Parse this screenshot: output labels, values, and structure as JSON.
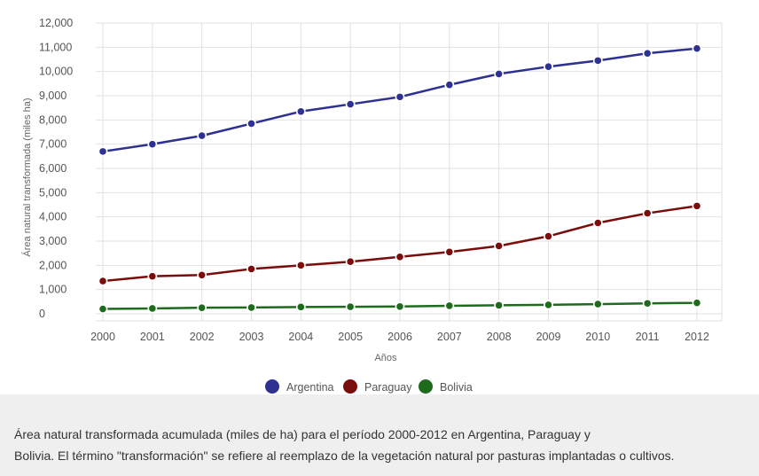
{
  "chart_data": {
    "type": "line",
    "title": "",
    "xlabel": "Años",
    "ylabel": "Área natural transformada (miles ha)",
    "ylim": [
      0,
      12000
    ],
    "yticks": [
      "0",
      "1,000",
      "2,000",
      "3,000",
      "4,000",
      "5,000",
      "6,000",
      "7,000",
      "8,000",
      "9,000",
      "10,000",
      "11,000",
      "12,000"
    ],
    "x": [
      "2000",
      "2001",
      "2002",
      "2003",
      "2004",
      "2005",
      "2006",
      "2007",
      "2008",
      "2009",
      "2010",
      "2011",
      "2012"
    ],
    "grid": true,
    "legend_position": "bottom",
    "series": [
      {
        "name": "Argentina",
        "color": "#2e3192",
        "values": [
          6700,
          7000,
          7350,
          7850,
          8350,
          8650,
          8950,
          9450,
          9900,
          10200,
          10450,
          10750,
          10950
        ]
      },
      {
        "name": "Paraguay",
        "color": "#7a0c0c",
        "values": [
          1350,
          1550,
          1600,
          1850,
          2000,
          2150,
          2350,
          2550,
          2800,
          3200,
          3750,
          4150,
          4450
        ]
      },
      {
        "name": "Bolivia",
        "color": "#1e6b1e",
        "values": [
          200,
          220,
          250,
          260,
          280,
          290,
          300,
          330,
          350,
          370,
          400,
          430,
          450
        ]
      }
    ]
  },
  "caption": {
    "line1": "Área natural transformada acumulada (miles de ha) para el período 2000-2012 en Argentina, Paraguay y",
    "line2": "Bolivia. El término \"transformación\" se refiere al reemplazo de la vegetación natural  por pasturas implantadas o cultivos."
  }
}
